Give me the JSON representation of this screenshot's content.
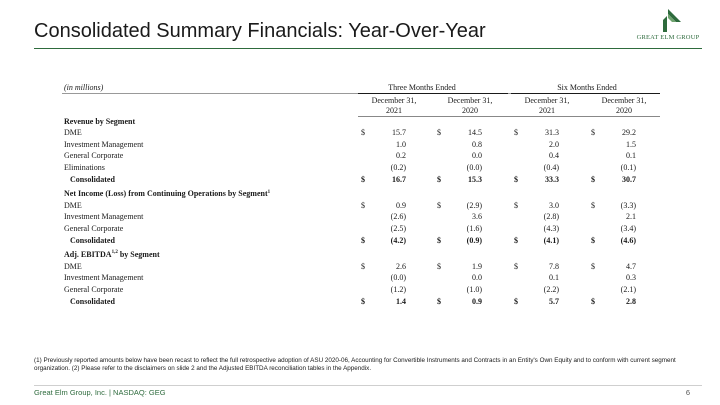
{
  "title": "Consolidated Summary Financials: Year-Over-Year",
  "logo_text": "GREAT ELM GROUP",
  "unit_label": "(in millions)",
  "group_headers": [
    "Three Months Ended",
    "Six Months Ended"
  ],
  "columns": [
    {
      "line1": "December 31,",
      "line2": "2021"
    },
    {
      "line1": "December 31,",
      "line2": "2020"
    },
    {
      "line1": "December 31,",
      "line2": "2021"
    },
    {
      "line1": "December 31,",
      "line2": "2020"
    }
  ],
  "sections": [
    {
      "heading": "Revenue by Segment",
      "heading_sup": "",
      "rows": [
        {
          "label": "DME",
          "dollar": true,
          "values": [
            "15.7",
            "14.5",
            "31.3",
            "29.2"
          ]
        },
        {
          "label": "Investment Management",
          "dollar": false,
          "values": [
            "1.0",
            "0.8",
            "2.0",
            "1.5"
          ]
        },
        {
          "label": "General Corporate",
          "dollar": false,
          "values": [
            "0.2",
            "0.0",
            "0.4",
            "0.1"
          ]
        },
        {
          "label": "Eliminations",
          "dollar": false,
          "values": [
            "(0.2)",
            "(0.0)",
            "(0.4)",
            "(0.1)"
          ]
        }
      ],
      "total": {
        "label": "Consolidated",
        "values": [
          "16.7",
          "15.3",
          "33.3",
          "30.7"
        ]
      }
    },
    {
      "heading": "Net Income (Loss) from Continuing Operations by Segment",
      "heading_sup": "1",
      "rows": [
        {
          "label": "DME",
          "dollar": true,
          "values": [
            "0.9",
            "(2.9)",
            "3.0",
            "(3.3)"
          ]
        },
        {
          "label": "Investment Management",
          "dollar": false,
          "values": [
            "(2.6)",
            "3.6",
            "(2.8)",
            "2.1"
          ]
        },
        {
          "label": "General Corporate",
          "dollar": false,
          "values": [
            "(2.5)",
            "(1.6)",
            "(4.3)",
            "(3.4)"
          ]
        }
      ],
      "total": {
        "label": "Consolidated",
        "values": [
          "(4.2)",
          "(0.9)",
          "(4.1)",
          "(4.6)"
        ]
      }
    },
    {
      "heading": "Adj. EBITDA",
      "heading_sup": "1,2",
      "heading_suffix": " by Segment",
      "rows": [
        {
          "label": "DME",
          "dollar": true,
          "values": [
            "2.6",
            "1.9",
            "7.8",
            "4.7"
          ]
        },
        {
          "label": "Investment Management",
          "dollar": false,
          "values": [
            "(0.0)",
            "0.0",
            "0.1",
            "0.3"
          ]
        },
        {
          "label": "General Corporate",
          "dollar": false,
          "values": [
            "(1.2)",
            "(1.0)",
            "(2.2)",
            "(2.1)"
          ]
        }
      ],
      "total": {
        "label": "Consolidated",
        "values": [
          "1.4",
          "0.9",
          "5.7",
          "2.8"
        ]
      }
    }
  ],
  "dollar_sign": "$",
  "footnote": "(1) Previously reported amounts below have been recast to reflect the full retrospective adoption of ASU 2020-06, Accounting for Convertible Instruments and Contracts in an Entity's Own Equity and to conform with current segment organization. (2) Please refer to the disclaimers on slide 2 and the Adjusted EBITDA reconciliation tables in the Appendix.",
  "footer": "Great Elm Group, Inc. | NASDAQ: GEG",
  "page_number": "6"
}
